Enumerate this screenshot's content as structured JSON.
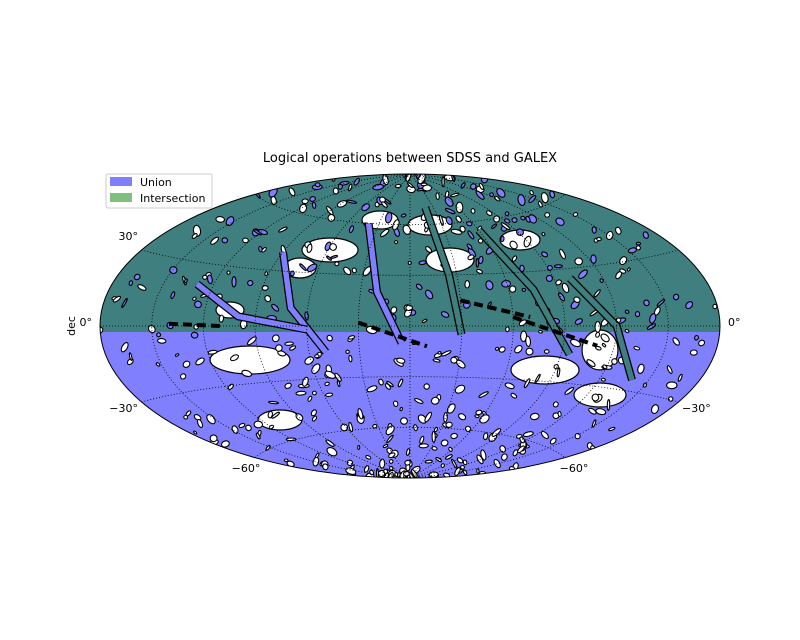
{
  "chart_data": {
    "type": "map",
    "projection": "aitoff",
    "title": "Logical operations between SDSS and GALEX",
    "ylabel": "dec",
    "grid": true,
    "legend_placement": "top-left",
    "legend": [
      {
        "name": "Union",
        "color": "#8080ff"
      },
      {
        "name": "Intersection",
        "color": "#7fbf7f"
      }
    ],
    "overlap_color": "#3f7f7f",
    "y_ticks_left": [
      {
        "dec": 30,
        "label": "30°"
      },
      {
        "dec": 0,
        "label": "0°"
      },
      {
        "dec": -30,
        "label": "−30°"
      }
    ],
    "y_ticks_right": [
      {
        "dec": 0,
        "label": "0°"
      },
      {
        "dec": -30,
        "label": "−30°"
      }
    ],
    "x_ticks_bottom": [
      {
        "label": "−60°"
      },
      {
        "label": "−60°"
      }
    ],
    "regions": [
      {
        "name": "Union",
        "dec_range": [
          -90,
          90
        ],
        "coverage": "full-sky minus gaps"
      },
      {
        "name": "Intersection",
        "dec_range": [
          -5,
          90
        ],
        "coverage": "northern cap"
      }
    ]
  }
}
